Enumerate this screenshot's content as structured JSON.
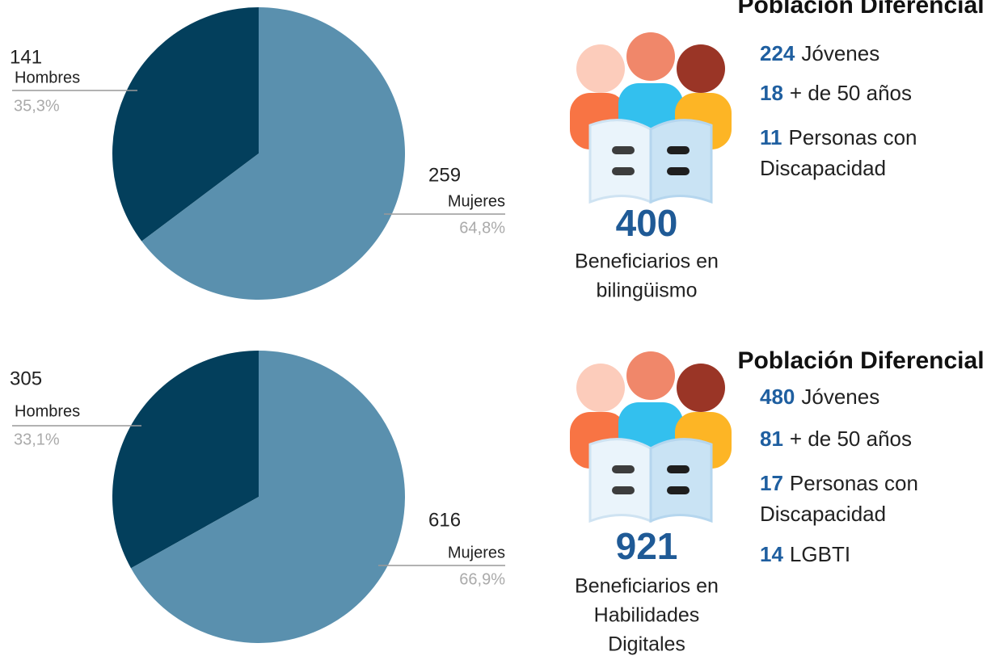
{
  "chart_data": [
    {
      "type": "pie",
      "categories": [
        "Hombres",
        "Mujeres"
      ],
      "values": [
        141,
        259
      ],
      "percent_labels": [
        "35,3%",
        "64,8%"
      ],
      "colors": [
        "#033f5c",
        "#5a90ae"
      ]
    },
    {
      "type": "pie",
      "categories": [
        "Hombres",
        "Mujeres"
      ],
      "values": [
        305,
        616
      ],
      "percent_labels": [
        "33,1%",
        "66,9%"
      ],
      "colors": [
        "#033f5c",
        "#5a90ae"
      ]
    }
  ],
  "panels": [
    {
      "title": "Población Diferencial",
      "total": "400",
      "total_lines": [
        "Beneficiarios en",
        "bilingüismo"
      ],
      "stats": [
        {
          "value": "224",
          "lines": [
            "Jóvenes"
          ]
        },
        {
          "value": "18",
          "lines": [
            "+ de 50 años"
          ]
        },
        {
          "value": "11",
          "lines": [
            "Personas con",
            "Discapacidad"
          ]
        }
      ]
    },
    {
      "title": "Población Diferencial",
      "total": "921",
      "total_lines": [
        "Beneficiarios en",
        "Habilidades",
        "Digitales"
      ],
      "stats": [
        {
          "value": "480",
          "lines": [
            "Jóvenes"
          ]
        },
        {
          "value": "81",
          "lines": [
            "+ de 50 años"
          ]
        },
        {
          "value": "17",
          "lines": [
            "Personas con",
            "Discapacidad"
          ]
        },
        {
          "value": "14",
          "lines": [
            "LGBTI"
          ]
        }
      ]
    }
  ]
}
